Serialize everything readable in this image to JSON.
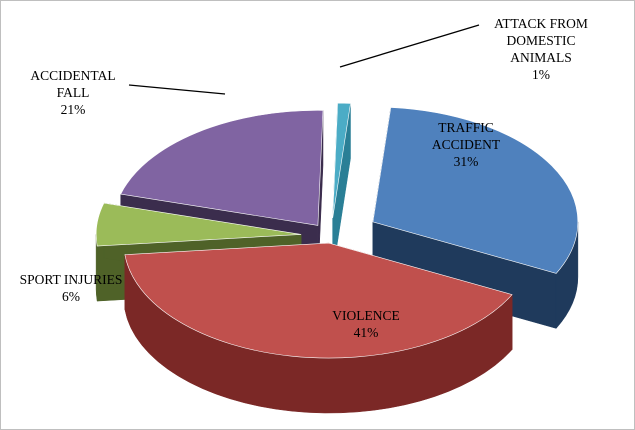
{
  "chart_data": {
    "type": "pie3d",
    "categories": [
      "TRAFFIC ACCIDENT",
      "VIOLENCE",
      "SPORT INJURIES",
      "ACCIDENTAL FALL",
      "ATTACK FROM DOMESTIC ANIMALS"
    ],
    "values": [
      31,
      41,
      6,
      21,
      1
    ],
    "value_labels": [
      "31%",
      "41%",
      "6%",
      "21%",
      "1%"
    ],
    "colors": [
      "#4f81bd",
      "#c0504d",
      "#9bbb59",
      "#8064a2",
      "#4bacc6"
    ],
    "side_colors": [
      "#1f3a5c",
      "#7b2826",
      "#4f6228",
      "#3b2d4d",
      "#2a7f96"
    ]
  }
}
